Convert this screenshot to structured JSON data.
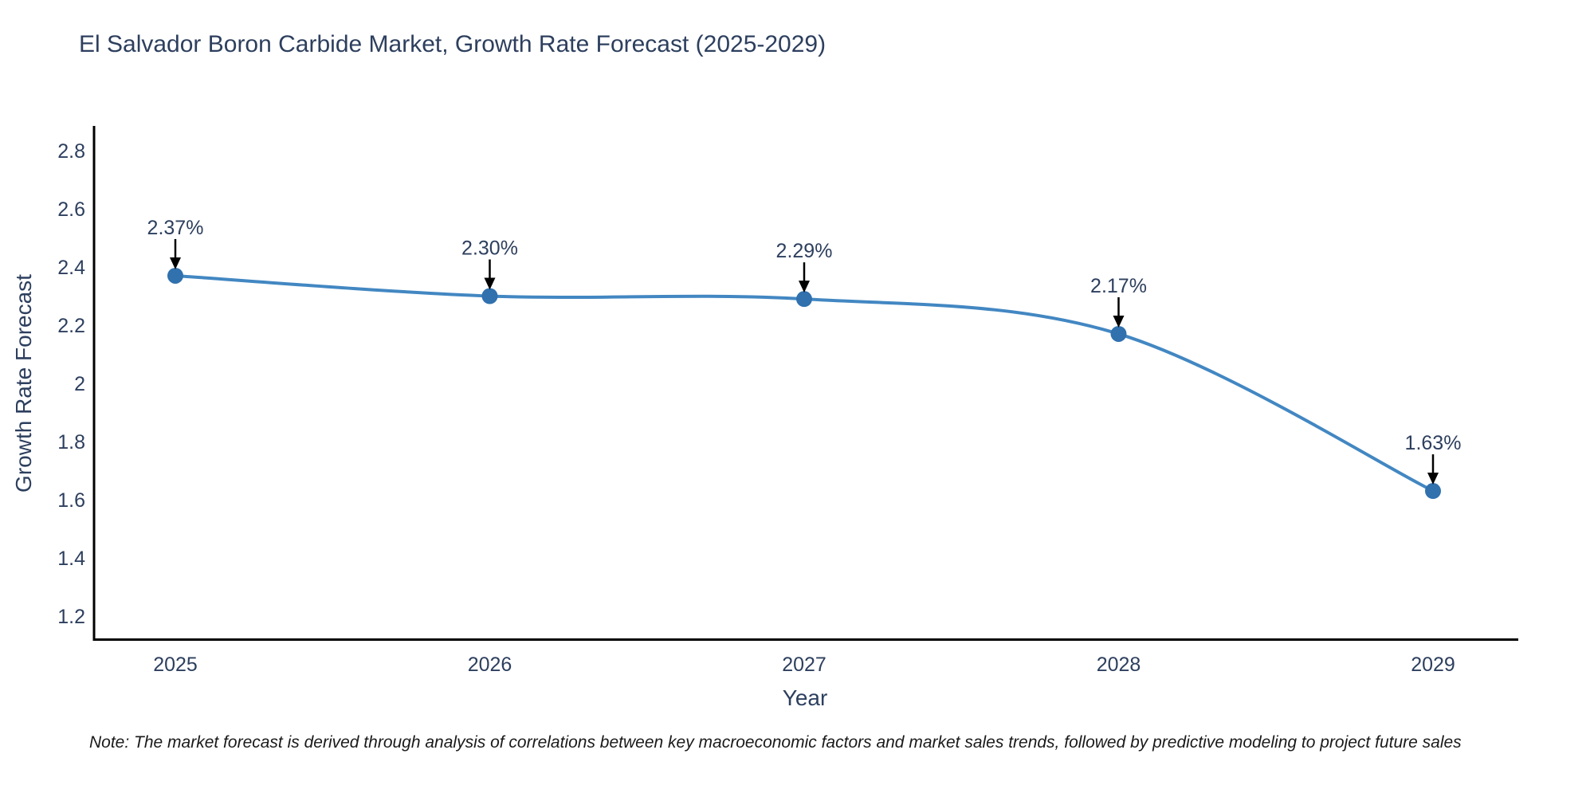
{
  "note": {
    "text": "Note: The market forecast is derived through analysis of correlations between key macroeconomic factors and market sales trends, followed by predictive modeling to project future sales"
  },
  "chart_data": {
    "type": "line",
    "title": "El Salvador Boron Carbide Market, Growth Rate Forecast (2025-2029)",
    "xlabel": "Year",
    "ylabel": "Growth Rate Forecast",
    "categories": [
      "2025",
      "2026",
      "2027",
      "2028",
      "2029"
    ],
    "x": [
      2025,
      2026,
      2027,
      2028,
      2029
    ],
    "series": [
      {
        "name": "Growth Rate Forecast",
        "values": [
          2.37,
          2.3,
          2.29,
          2.17,
          1.63
        ]
      }
    ],
    "point_labels": [
      "2.37%",
      "2.30%",
      "2.29%",
      "2.17%",
      "1.63%"
    ],
    "yticks": {
      "values": [
        1.2,
        1.4,
        1.6,
        1.8,
        2.0,
        2.2,
        2.4,
        2.6,
        2.8
      ],
      "labels": [
        "1.2",
        "1.4",
        "1.6",
        "1.8",
        "2",
        "2.2",
        "2.4",
        "2.6",
        "2.8"
      ]
    },
    "ylim": [
      1.12,
      2.88
    ],
    "xlim": [
      2024.73,
      2029.27
    ],
    "grid": false,
    "legend": "none",
    "line_shape": "spline",
    "colors": {
      "line": "#4287c2",
      "marker": "#3071ae",
      "axis": "#000000",
      "text": "#2d3f5e",
      "annotation_text": "#2d3f5e",
      "annotation_arrow": "#000000"
    }
  }
}
